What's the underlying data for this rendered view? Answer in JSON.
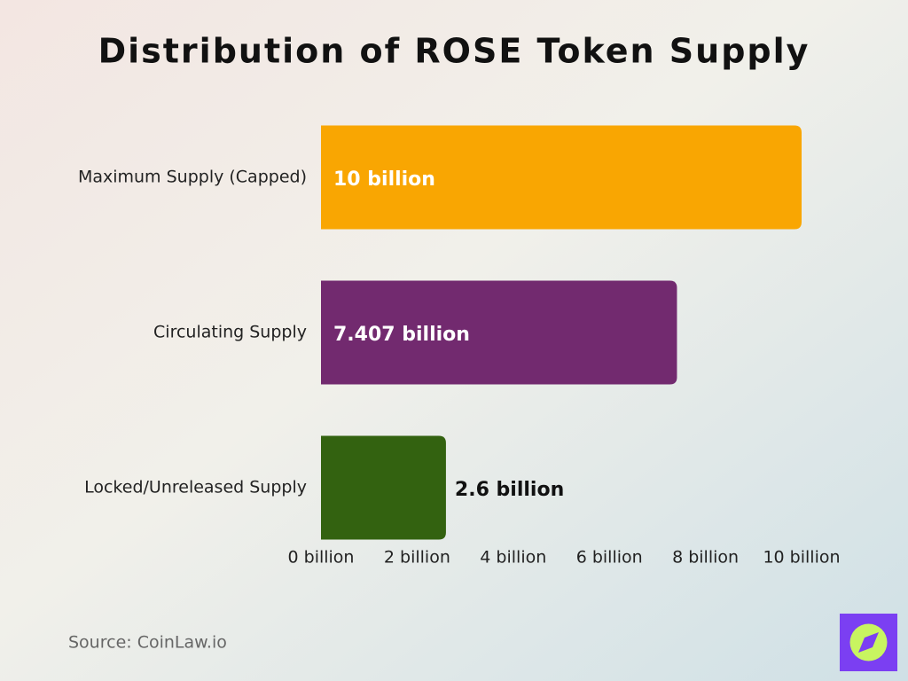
{
  "chart_data": {
    "type": "hbar",
    "title": "Distribution of ROSE Token Supply",
    "categories": [
      "Maximum Supply (Capped)",
      "Circulating Supply",
      "Locked/Unreleased Supply"
    ],
    "values": [
      10,
      7.407,
      2.6
    ],
    "value_labels": [
      "10 billion",
      "7.407 billion",
      "2.6 billion"
    ],
    "colors": [
      "#f9a602",
      "#722a6f",
      "#336210"
    ],
    "xlim": [
      0,
      10
    ],
    "xticks": [
      {
        "value": 0,
        "label": "0 billion"
      },
      {
        "value": 2,
        "label": "2 billion"
      },
      {
        "value": 4,
        "label": "4 billion"
      },
      {
        "value": 6,
        "label": "6 billion"
      },
      {
        "value": 8,
        "label": "8 billion"
      },
      {
        "value": 10,
        "label": "10 billion"
      }
    ],
    "source": "Source: CoinLaw.io"
  }
}
